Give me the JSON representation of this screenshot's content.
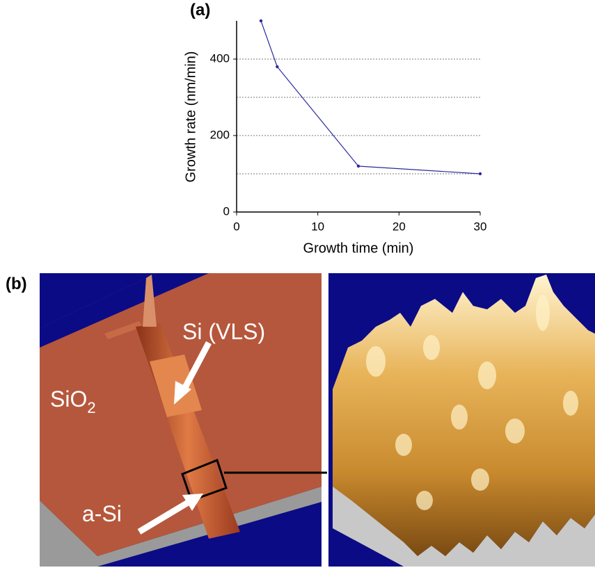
{
  "chart_data": {
    "type": "line",
    "title": "(a)",
    "x_label": "Growth time (min)",
    "y_label": "Growth rate (nm/min)",
    "x": [
      3,
      5,
      15,
      30
    ],
    "values": [
      500,
      380,
      120,
      100
    ],
    "color": "#2a2aa0",
    "xlim": [
      0,
      30
    ],
    "xticks": [
      0,
      10,
      20,
      30
    ],
    "ylim": [
      0,
      500
    ],
    "yticks": [
      0,
      200,
      400
    ],
    "ygrid": [
      100,
      200,
      300,
      400
    ],
    "grid": true
  },
  "panel_b": {
    "label": "(b)",
    "si_vls": "Si (VLS)",
    "sio2": "SiO",
    "sio2_sub": "2",
    "a_si": "a-Si"
  }
}
